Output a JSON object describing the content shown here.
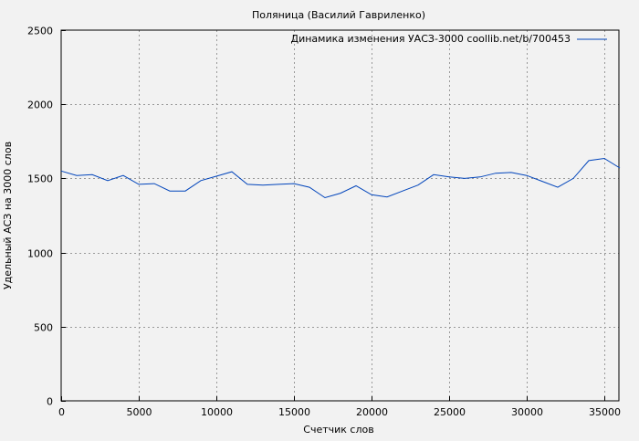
{
  "chart_data": {
    "type": "line",
    "title": "Поляница (Василий Гавриленко)",
    "xlabel": "Счетчик слов",
    "ylabel": "Удельный АСЗ на 3000 слов",
    "xlim": [
      0,
      36000
    ],
    "ylim": [
      0,
      2500
    ],
    "xticks": [
      0,
      5000,
      10000,
      15000,
      20000,
      25000,
      30000,
      35000
    ],
    "yticks": [
      0,
      500,
      1000,
      1500,
      2000,
      2500
    ],
    "grid": true,
    "legend_position": "top-right",
    "series": [
      {
        "name": "Динамика изменения УАСЗ-3000 coollib.net/b/700453",
        "color": "#0044bb",
        "x": [
          0,
          1000,
          2000,
          3000,
          4000,
          5000,
          6000,
          7000,
          8000,
          9000,
          10000,
          11000,
          12000,
          13000,
          14000,
          15000,
          16000,
          17000,
          18000,
          19000,
          20000,
          21000,
          22000,
          23000,
          24000,
          25000,
          26000,
          27000,
          28000,
          29000,
          30000,
          31000,
          32000,
          33000,
          34000,
          35000,
          36000
        ],
        "y": [
          1550,
          1520,
          1525,
          1485,
          1520,
          1460,
          1465,
          1415,
          1415,
          1485,
          1515,
          1545,
          1460,
          1455,
          1460,
          1465,
          1440,
          1370,
          1400,
          1450,
          1390,
          1375,
          1415,
          1455,
          1525,
          1510,
          1500,
          1510,
          1535,
          1540,
          1520,
          1480,
          1440,
          1500,
          1620,
          1635,
          1570
        ]
      }
    ]
  }
}
